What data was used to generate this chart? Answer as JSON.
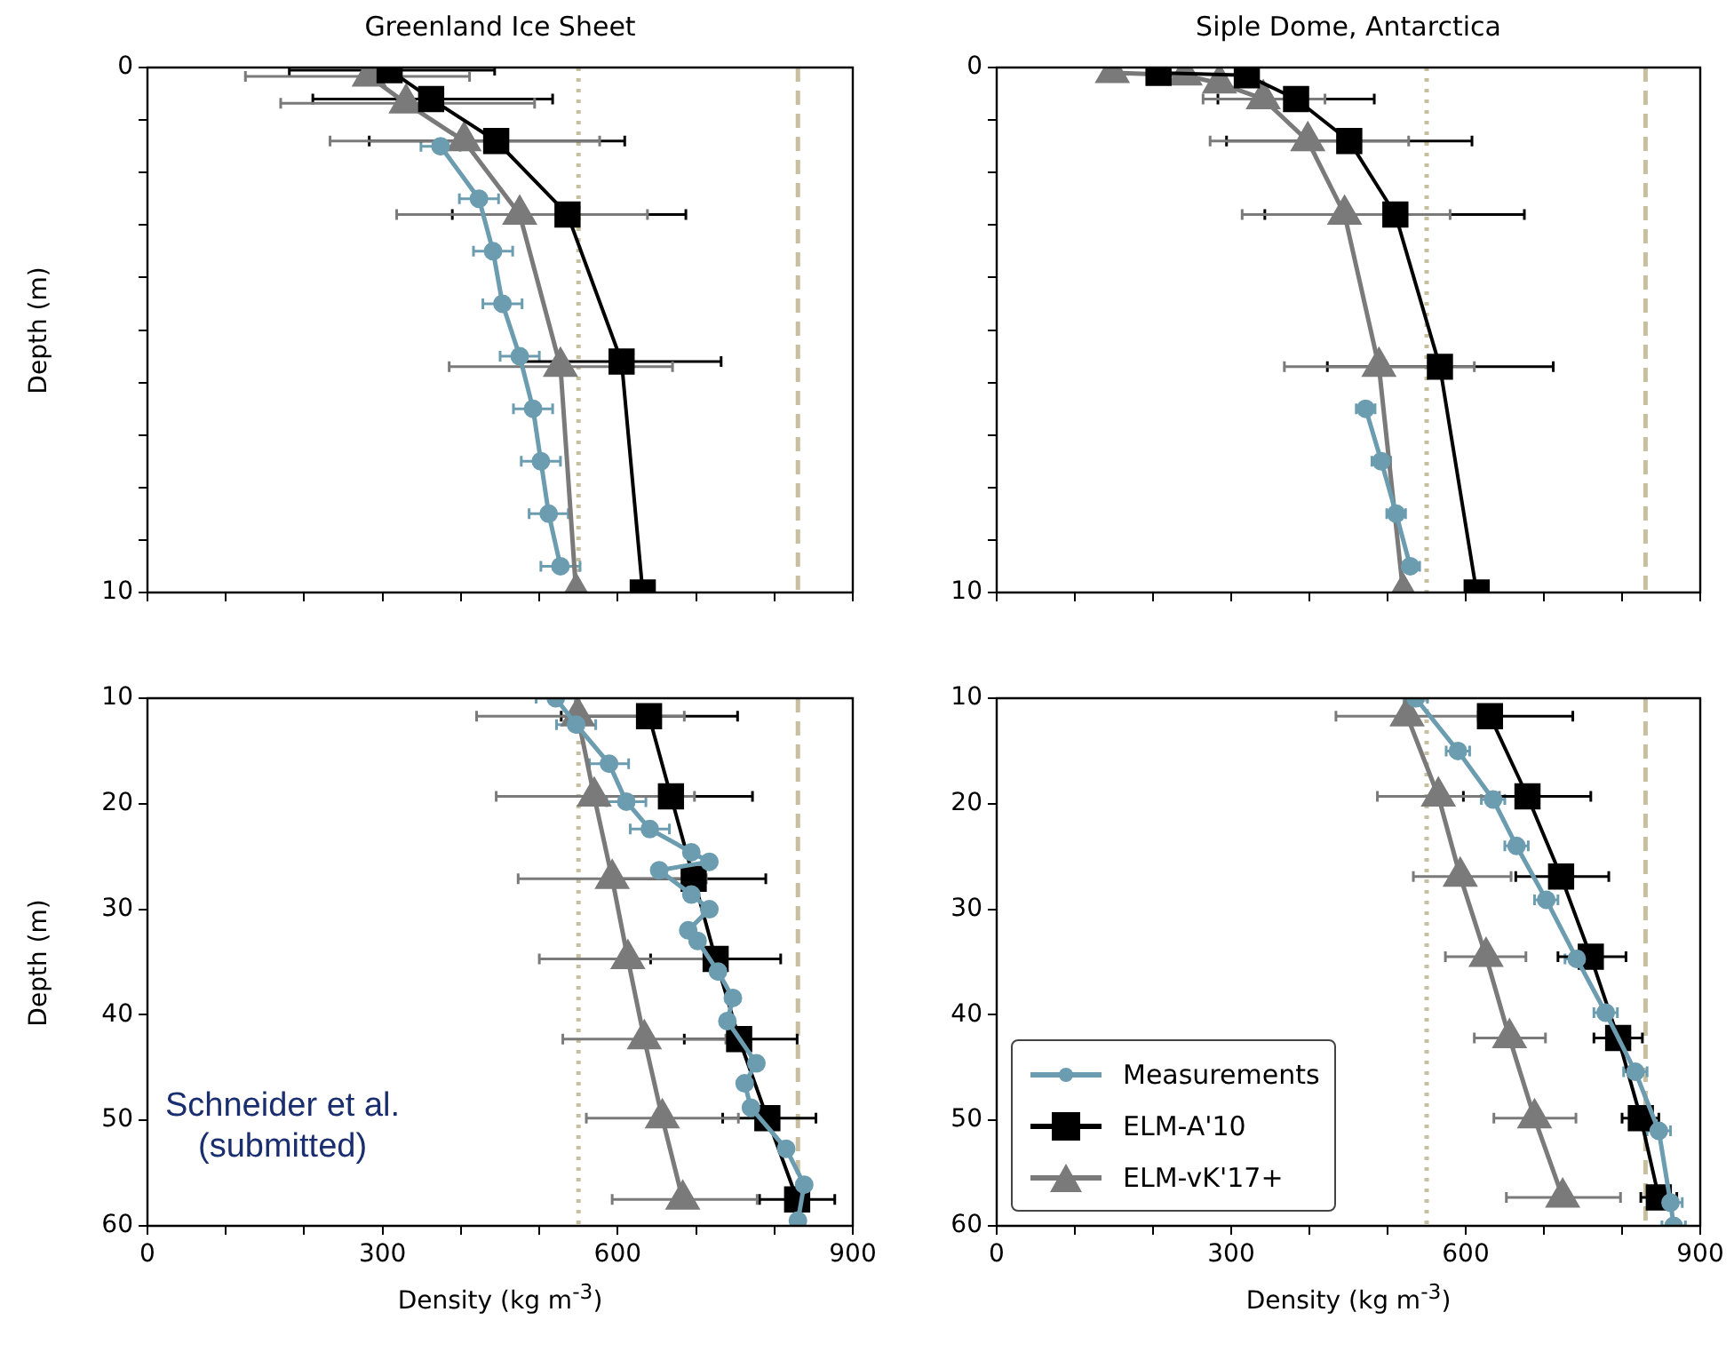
{
  "chart_data": [
    {
      "type": "line",
      "title": "Greenland Ice Sheet",
      "ylabel": "Depth (m)",
      "xlim": [
        0,
        900
      ],
      "xticks": [
        0,
        {
          "value": 100,
          "label": null
        },
        {
          "value": 200,
          "label": null
        },
        300,
        {
          "value": 400,
          "label": null
        },
        {
          "value": 500,
          "label": null
        },
        600,
        {
          "value": 700,
          "label": null
        },
        {
          "value": 800,
          "label": null
        },
        900
      ],
      "ylim": [
        10,
        0
      ],
      "yticks": [
        0,
        {
          "value": 1,
          "label": null
        },
        {
          "value": 2,
          "label": null
        },
        {
          "value": 3,
          "label": null
        },
        {
          "value": 4,
          "label": null
        },
        {
          "value": 5,
          "label": null
        },
        {
          "value": 6,
          "label": null
        },
        {
          "value": 7,
          "label": null
        },
        {
          "value": 8,
          "label": null
        },
        {
          "value": 9,
          "label": null
        },
        10
      ],
      "tick_labels": "y",
      "grid": false,
      "legend": false,
      "ref_lines": [
        {
          "axis": "x",
          "value": 550,
          "color": "#c8bea0",
          "line_style": "dotted"
        },
        {
          "axis": "x",
          "value": 830,
          "color": "#c8bea0",
          "line_style": "dashed"
        }
      ],
      "series": [
        {
          "color": "#6b9caf",
          "marker": "circle",
          "x": [
            374,
            423,
            441,
            453,
            475,
            492,
            502,
            512,
            527
          ],
          "values": [
            1.5,
            2.5,
            3.5,
            4.5,
            5.5,
            6.5,
            7.5,
            8.5,
            9.5
          ],
          "xerrors": [
            25,
            25,
            25,
            25,
            25,
            25,
            25,
            25,
            25
          ]
        },
        {
          "color": "#000000",
          "marker": "square",
          "x": [
            309,
            362,
            445,
            536,
            605,
            632
          ],
          "values": [
            0.05,
            0.6,
            1.4,
            2.8,
            5.6,
            10
          ],
          "xerrors": [
            [
              181,
              443
            ],
            [
              211,
              517
            ],
            [
              283,
              609
            ],
            [
              389,
              687
            ],
            [
              478,
              732
            ],
            null
          ]
        },
        {
          "color": "#7a7a7a",
          "marker": "triangle",
          "x": [
            283,
            330,
            404,
            475,
            527,
            547
          ],
          "values": [
            0.17,
            0.68,
            1.4,
            2.8,
            5.7,
            10
          ],
          "xerrors": [
            [
              125,
              411
            ],
            [
              170,
              494
            ],
            [
              233,
              577
            ],
            [
              318,
              638
            ],
            [
              385,
              670
            ],
            null
          ]
        }
      ]
    },
    {
      "type": "line",
      "title": "Siple Dome, Antarctica",
      "xlim": [
        0,
        900
      ],
      "xticks": [
        0,
        {
          "value": 100,
          "label": null
        },
        {
          "value": 200,
          "label": null
        },
        300,
        {
          "value": 400,
          "label": null
        },
        {
          "value": 500,
          "label": null
        },
        600,
        {
          "value": 700,
          "label": null
        },
        {
          "value": 800,
          "label": null
        },
        900
      ],
      "ylim": [
        10,
        0
      ],
      "yticks": [
        0,
        {
          "value": 1,
          "label": null
        },
        {
          "value": 2,
          "label": null
        },
        {
          "value": 3,
          "label": null
        },
        {
          "value": 4,
          "label": null
        },
        {
          "value": 5,
          "label": null
        },
        {
          "value": 6,
          "label": null
        },
        {
          "value": 7,
          "label": null
        },
        {
          "value": 8,
          "label": null
        },
        {
          "value": 9,
          "label": null
        },
        10
      ],
      "tick_labels": "y",
      "grid": false,
      "legend": false,
      "ref_lines": [
        {
          "axis": "x",
          "value": 550,
          "color": "#c8bea0",
          "line_style": "dotted"
        },
        {
          "axis": "x",
          "value": 830,
          "color": "#c8bea0",
          "line_style": "dashed"
        }
      ],
      "series": [
        {
          "color": "#6b9caf",
          "marker": "circle",
          "x": [
            472,
            492,
            511,
            529
          ],
          "values": [
            6.5,
            7.5,
            8.5,
            9.5
          ],
          "xerrors": [
            12,
            12,
            12,
            12
          ]
        },
        {
          "color": "#000000",
          "marker": "square",
          "x": [
            207,
            320,
            383,
            451,
            510,
            567,
            614
          ],
          "values": [
            0.1,
            0.15,
            0.6,
            1.4,
            2.8,
            5.7,
            10
          ],
          "xerrors": [
            null,
            null,
            [
              283,
              483
            ],
            [
              294,
              608
            ],
            [
              343,
              675
            ],
            [
              423,
              712
            ],
            null
          ]
        },
        {
          "color": "#7a7a7a",
          "marker": "triangle",
          "x": [
            148,
            241,
            285,
            341,
            398,
            445,
            489,
            520
          ],
          "values": [
            0.1,
            0.15,
            0.3,
            0.6,
            1.4,
            2.8,
            5.7,
            10
          ],
          "xerrors": [
            null,
            null,
            null,
            [
              264,
              420
            ],
            [
              273,
              527
            ],
            [
              314,
              580
            ],
            [
              368,
              611
            ],
            null
          ]
        }
      ]
    },
    {
      "type": "line",
      "xlabel": "Density (kg m$^{-3}$)",
      "ylabel": "Depth (m)",
      "xlim": [
        0,
        900
      ],
      "xticks": [
        0,
        {
          "value": 100,
          "label": null
        },
        {
          "value": 200,
          "label": null
        },
        300,
        {
          "value": 400,
          "label": null
        },
        {
          "value": 500,
          "label": null
        },
        600,
        {
          "value": 700,
          "label": null
        },
        {
          "value": 800,
          "label": null
        },
        900
      ],
      "ylim": [
        60,
        10
      ],
      "yticks": [
        10,
        20,
        30,
        40,
        50,
        60
      ],
      "grid": false,
      "legend": false,
      "annotations": [
        "Schneider et al.\n(submitted)"
      ],
      "ref_lines": [
        {
          "axis": "x",
          "value": 550,
          "color": "#c8bea0",
          "line_style": "dotted"
        },
        {
          "axis": "x",
          "value": 830,
          "color": "#c8bea0",
          "line_style": "dashed"
        }
      ],
      "series": [
        {
          "color": "#6b9caf",
          "marker": "circle",
          "x": [
            521,
            547,
            589,
            611,
            641,
            694,
            717,
            653,
            694,
            717,
            690,
            702,
            728,
            747,
            740,
            777,
            762,
            770,
            815,
            838,
            830
          ],
          "values": [
            10,
            12.5,
            16.2,
            19.8,
            22.4,
            24.6,
            25.5,
            26.3,
            28.6,
            30,
            32,
            33,
            35.9,
            38.4,
            40.6,
            44.6,
            46.5,
            48.8,
            52.7,
            56.1,
            59.5
          ],
          "xerrors": [
            25,
            25,
            25,
            25,
            25,
            null,
            null,
            null,
            null,
            null,
            null,
            null,
            null,
            null,
            null,
            null,
            null,
            null,
            null,
            null,
            null
          ]
        },
        {
          "color": "#000000",
          "marker": "square",
          "x": [
            640,
            668,
            697,
            725,
            755,
            791,
            829
          ],
          "values": [
            11.7,
            19.3,
            27.1,
            34.7,
            42.3,
            49.8,
            57.5
          ],
          "xerrors": [
            [
              528,
              753
            ],
            [
              564,
              772
            ],
            [
              600,
              789
            ],
            [
              642,
              808
            ],
            [
              685,
              829
            ],
            [
              734,
              853
            ],
            [
              781,
              877
            ]
          ]
        },
        {
          "color": "#7a7a7a",
          "marker": "triangle",
          "x": [
            549,
            570,
            593,
            613,
            634,
            657,
            683
          ],
          "values": [
            11.7,
            19.3,
            27.1,
            34.7,
            42.3,
            49.8,
            57.5
          ],
          "xerrors": [
            [
              420,
              685
            ],
            [
              445,
              698
            ],
            [
              473,
              713
            ],
            [
              500,
              726
            ],
            [
              530,
              738
            ],
            [
              560,
              754
            ],
            [
              593,
              778
            ]
          ]
        }
      ]
    },
    {
      "type": "line",
      "xlabel": "Density (kg m$^{-3}$)",
      "xlim": [
        0,
        900
      ],
      "xticks": [
        0,
        {
          "value": 100,
          "label": null
        },
        {
          "value": 200,
          "label": null
        },
        300,
        {
          "value": 400,
          "label": null
        },
        {
          "value": 500,
          "label": null
        },
        600,
        {
          "value": 700,
          "label": null
        },
        {
          "value": 800,
          "label": null
        },
        900
      ],
      "ylim": [
        60,
        10
      ],
      "yticks": [
        10,
        20,
        30,
        40,
        50,
        60
      ],
      "grid": false,
      "legend": "bottom left",
      "ref_lines": [
        {
          "axis": "x",
          "value": 550,
          "color": "#c8bea0",
          "line_style": "dotted"
        },
        {
          "axis": "x",
          "value": 830,
          "color": "#c8bea0",
          "line_style": "dashed"
        }
      ],
      "series": [
        {
          "name": "Measurements",
          "color": "#6b9caf",
          "marker": "circle",
          "x": [
            536,
            590,
            635,
            665,
            703,
            742,
            779,
            817,
            847,
            862,
            866
          ],
          "values": [
            10,
            15,
            19.6,
            24,
            29.1,
            34.7,
            39.8,
            45.4,
            51,
            57.8,
            60
          ],
          "xerrors": [
            15,
            15,
            15,
            15,
            15,
            15,
            15,
            15,
            15,
            15,
            15
          ]
        },
        {
          "name": "ELM-A'10",
          "color": "#000000",
          "marker": "square",
          "x": [
            631,
            679,
            722,
            760,
            795,
            824,
            847
          ],
          "values": [
            11.7,
            19.3,
            26.9,
            34.5,
            42.2,
            49.8,
            57.3
          ],
          "xerrors": [
            [
              631,
              737
            ],
            [
              597,
              760
            ],
            [
              664,
              783
            ],
            [
              718,
              805
            ],
            [
              764,
              826
            ],
            [
              800,
              847
            ],
            [
              824,
              870
            ]
          ]
        },
        {
          "name": "ELM-vK'17+",
          "color": "#7a7a7a",
          "marker": "triangle",
          "x": [
            525,
            565,
            593,
            626,
            656,
            688,
            724
          ],
          "values": [
            11.7,
            19.3,
            26.9,
            34.5,
            42.2,
            49.8,
            57.3
          ],
          "xerrors": [
            [
              434,
              616
            ],
            [
              487,
              643
            ],
            [
              533,
              658
            ],
            [
              574,
              677
            ],
            [
              611,
              702
            ],
            [
              636,
              741
            ],
            [
              652,
              798
            ]
          ]
        }
      ]
    }
  ]
}
